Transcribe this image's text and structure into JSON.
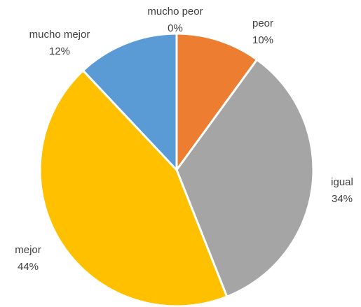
{
  "chart_data": {
    "type": "pie",
    "categories": [
      "mucho peor",
      "peor",
      "igual",
      "mejor",
      "mucho mejor"
    ],
    "values": [
      0,
      10,
      34,
      44,
      12
    ],
    "value_labels": [
      "0%",
      "10%",
      "34%",
      "44%",
      "12%"
    ],
    "colors": [
      "#4472c4",
      "#ed7d31",
      "#a5a5a5",
      "#ffc000",
      "#5b9bd5"
    ]
  }
}
